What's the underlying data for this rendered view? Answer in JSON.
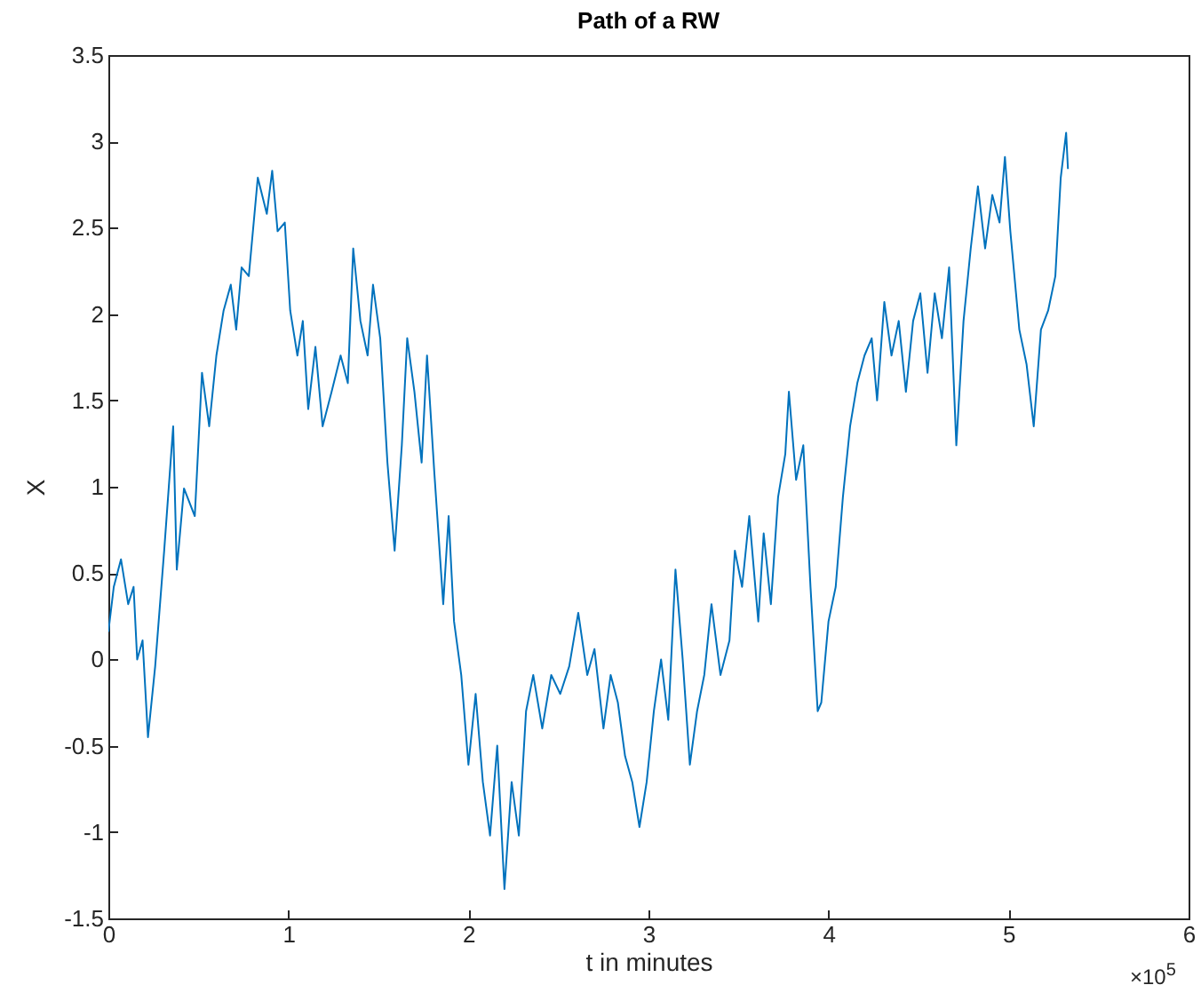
{
  "chart_data": {
    "type": "line",
    "title": "Path of a RW",
    "xlabel": "t in minutes",
    "ylabel": "X",
    "annotations": [
      "×10$^{5}$"
    ],
    "xlim": [
      0,
      6
    ],
    "xticks": [
      0,
      1,
      2,
      3,
      4,
      5,
      6
    ],
    "ylim": [
      -1.5,
      3.5
    ],
    "yticks": [
      -1.5,
      -1,
      -0.5,
      0,
      0.5,
      1,
      1.5,
      2,
      2.5,
      3,
      3.5
    ],
    "grid": false,
    "marker": "none",
    "line_style": "solid",
    "series": [
      {
        "color": "#0072bd",
        "x": [
          0,
          0.03,
          0.07,
          0.11,
          0.14,
          0.16,
          0.19,
          0.22,
          0.26,
          0.31,
          0.36,
          0.38,
          0.42,
          0.48,
          0.52,
          0.56,
          0.6,
          0.64,
          0.68,
          0.71,
          0.74,
          0.78,
          0.83,
          0.88,
          0.91,
          0.94,
          0.98,
          1.01,
          1.05,
          1.08,
          1.11,
          1.15,
          1.19,
          1.24,
          1.29,
          1.33,
          1.36,
          1.4,
          1.44,
          1.47,
          1.51,
          1.55,
          1.59,
          1.63,
          1.66,
          1.7,
          1.74,
          1.77,
          1.81,
          1.86,
          1.89,
          1.92,
          1.96,
          2.0,
          2.04,
          2.08,
          2.12,
          2.16,
          2.2,
          2.24,
          2.28,
          2.32,
          2.36,
          2.41,
          2.46,
          2.51,
          2.56,
          2.61,
          2.66,
          2.7,
          2.75,
          2.79,
          2.83,
          2.87,
          2.91,
          2.95,
          2.99,
          3.03,
          3.07,
          3.11,
          3.15,
          3.19,
          3.23,
          3.27,
          3.31,
          3.35,
          3.4,
          3.45,
          3.48,
          3.52,
          3.56,
          3.61,
          3.64,
          3.68,
          3.72,
          3.76,
          3.78,
          3.82,
          3.86,
          3.9,
          3.94,
          3.96,
          4.0,
          4.04,
          4.08,
          4.12,
          4.16,
          4.2,
          4.24,
          4.27,
          4.31,
          4.35,
          4.39,
          4.43,
          4.47,
          4.51,
          4.55,
          4.59,
          4.63,
          4.67,
          4.71,
          4.75,
          4.79,
          4.83,
          4.87,
          4.91,
          4.95,
          4.98,
          5.01,
          5.06,
          5.1,
          5.14,
          5.18,
          5.22,
          5.26,
          5.29,
          5.32,
          5.33
        ],
        "values": [
          0.16,
          0.42,
          0.58,
          0.32,
          0.42,
          0.0,
          0.11,
          -0.45,
          -0.04,
          0.63,
          1.35,
          0.52,
          0.99,
          0.83,
          1.66,
          1.35,
          1.76,
          2.02,
          2.17,
          1.91,
          2.27,
          2.22,
          2.79,
          2.58,
          2.83,
          2.48,
          2.53,
          2.02,
          1.76,
          1.96,
          1.45,
          1.81,
          1.35,
          1.55,
          1.76,
          1.6,
          2.38,
          1.96,
          1.76,
          2.17,
          1.86,
          1.14,
          0.63,
          1.24,
          1.86,
          1.55,
          1.14,
          1.76,
          1.09,
          0.32,
          0.83,
          0.22,
          -0.09,
          -0.61,
          -0.2,
          -0.71,
          -1.02,
          -0.5,
          -1.33,
          -0.71,
          -1.02,
          -0.3,
          -0.09,
          -0.4,
          -0.09,
          -0.2,
          -0.04,
          0.27,
          -0.09,
          0.06,
          -0.4,
          -0.09,
          -0.25,
          -0.56,
          -0.71,
          -0.97,
          -0.71,
          -0.3,
          0.0,
          -0.35,
          0.52,
          0.0,
          -0.61,
          -0.3,
          -0.09,
          0.32,
          -0.09,
          0.11,
          0.63,
          0.42,
          0.83,
          0.22,
          0.73,
          0.32,
          0.94,
          1.19,
          1.55,
          1.04,
          1.24,
          0.42,
          -0.3,
          -0.25,
          0.22,
          0.42,
          0.94,
          1.35,
          1.6,
          1.76,
          1.86,
          1.5,
          2.07,
          1.76,
          1.96,
          1.55,
          1.96,
          2.12,
          1.66,
          2.12,
          1.86,
          2.27,
          1.24,
          1.96,
          2.38,
          2.74,
          2.38,
          2.69,
          2.53,
          2.91,
          2.48,
          1.91,
          1.71,
          1.35,
          1.91,
          2.02,
          2.22,
          2.79,
          3.05,
          2.84
        ]
      }
    ]
  }
}
